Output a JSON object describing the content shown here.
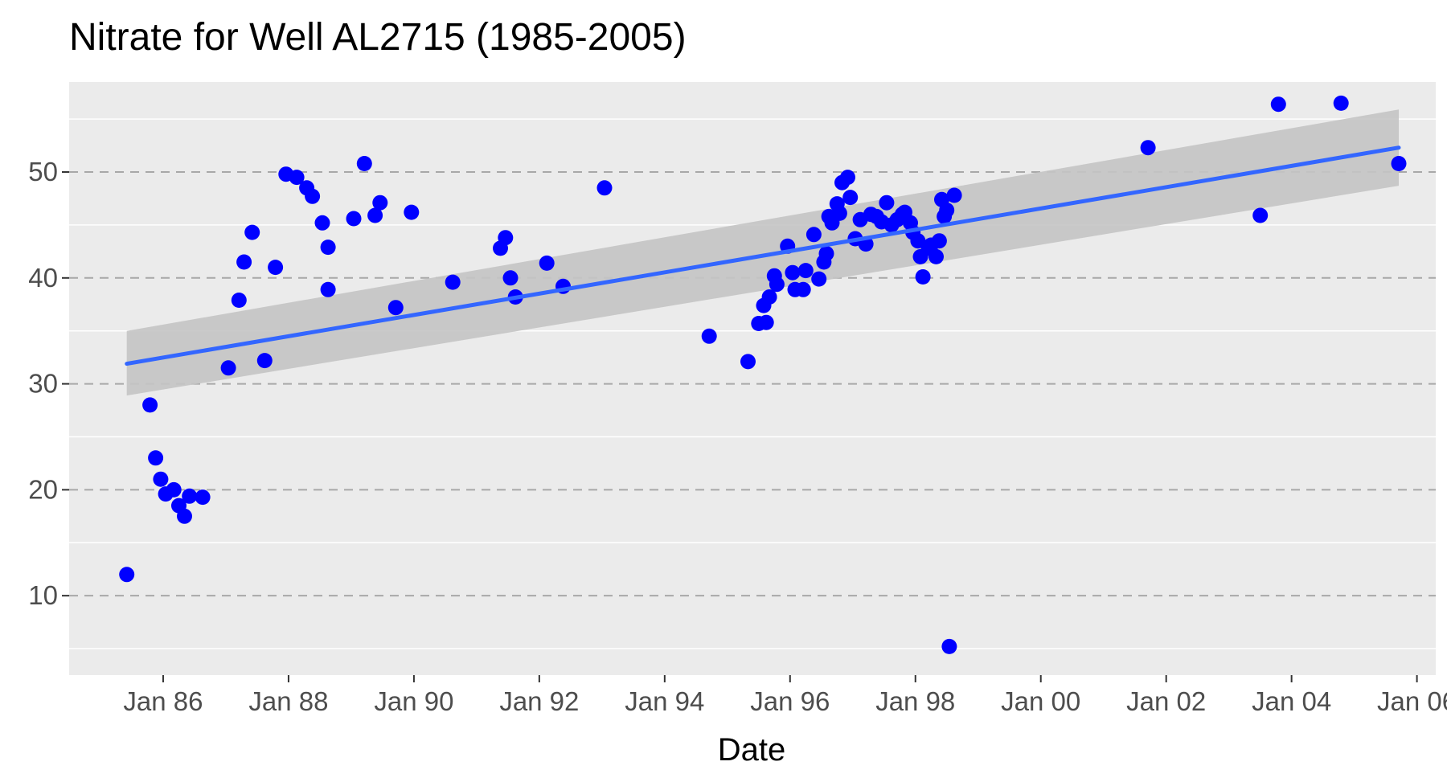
{
  "chart_data": {
    "type": "scatter",
    "title": "Nitrate for Well AL2715 (1985-2005)",
    "xlabel": "Date",
    "ylabel": "",
    "x_unit": "year",
    "xlim": [
      1984.5,
      2006.3
    ],
    "ylim": [
      2.5,
      58.5
    ],
    "grid": true,
    "legend": "none",
    "x_ticks": [
      {
        "value": 1986,
        "label": "Jan 86"
      },
      {
        "value": 1988,
        "label": "Jan 88"
      },
      {
        "value": 1990,
        "label": "Jan 90"
      },
      {
        "value": 1992,
        "label": "Jan 92"
      },
      {
        "value": 1994,
        "label": "Jan 94"
      },
      {
        "value": 1996,
        "label": "Jan 96"
      },
      {
        "value": 1998,
        "label": "Jan 98"
      },
      {
        "value": 2000,
        "label": "Jan 00"
      },
      {
        "value": 2002,
        "label": "Jan 02"
      },
      {
        "value": 2004,
        "label": "Jan 04"
      },
      {
        "value": 2006,
        "label": "Jan 06"
      }
    ],
    "y_ticks": [
      {
        "value": 10,
        "label": "10"
      },
      {
        "value": 20,
        "label": "20"
      },
      {
        "value": 30,
        "label": "30"
      },
      {
        "value": 40,
        "label": "40"
      },
      {
        "value": 50,
        "label": "50"
      }
    ],
    "point_color": "#0000ff",
    "trend_color": "#3366ff",
    "band_color": "#c4c4c4",
    "panel_background": "#ebebeb",
    "series": [
      {
        "name": "Nitrate",
        "points": [
          [
            1985.42,
            12.0
          ],
          [
            1985.79,
            28.0
          ],
          [
            1985.88,
            23.0
          ],
          [
            1985.96,
            21.0
          ],
          [
            1986.04,
            19.6
          ],
          [
            1986.17,
            20.0
          ],
          [
            1986.25,
            18.5
          ],
          [
            1986.34,
            17.5
          ],
          [
            1986.42,
            19.4
          ],
          [
            1986.63,
            19.3
          ],
          [
            1987.04,
            31.5
          ],
          [
            1987.21,
            37.9
          ],
          [
            1987.29,
            41.5
          ],
          [
            1987.42,
            44.3
          ],
          [
            1987.62,
            32.2
          ],
          [
            1987.79,
            41.0
          ],
          [
            1987.96,
            49.8
          ],
          [
            1988.13,
            49.5
          ],
          [
            1988.29,
            48.5
          ],
          [
            1988.38,
            47.7
          ],
          [
            1988.54,
            45.2
          ],
          [
            1988.63,
            42.9
          ],
          [
            1988.63,
            38.9
          ],
          [
            1989.04,
            45.6
          ],
          [
            1989.21,
            50.8
          ],
          [
            1989.38,
            45.9
          ],
          [
            1989.46,
            47.1
          ],
          [
            1989.71,
            37.2
          ],
          [
            1989.96,
            46.2
          ],
          [
            1990.62,
            39.6
          ],
          [
            1991.38,
            42.8
          ],
          [
            1991.46,
            43.8
          ],
          [
            1991.54,
            40.0
          ],
          [
            1991.62,
            38.2
          ],
          [
            1992.12,
            41.4
          ],
          [
            1992.38,
            39.2
          ],
          [
            1993.04,
            48.5
          ],
          [
            1994.71,
            34.5
          ],
          [
            1995.33,
            32.1
          ],
          [
            1995.5,
            35.7
          ],
          [
            1995.58,
            37.4
          ],
          [
            1995.62,
            35.8
          ],
          [
            1995.67,
            38.2
          ],
          [
            1995.75,
            40.2
          ],
          [
            1995.79,
            39.4
          ],
          [
            1995.96,
            43.0
          ],
          [
            1996.04,
            40.5
          ],
          [
            1996.08,
            38.9
          ],
          [
            1996.21,
            38.9
          ],
          [
            1996.25,
            40.7
          ],
          [
            1996.38,
            44.1
          ],
          [
            1996.46,
            39.9
          ],
          [
            1996.54,
            41.5
          ],
          [
            1996.58,
            42.3
          ],
          [
            1996.62,
            45.8
          ],
          [
            1996.67,
            45.2
          ],
          [
            1996.75,
            47.0
          ],
          [
            1996.79,
            46.1
          ],
          [
            1996.83,
            49.0
          ],
          [
            1996.92,
            49.5
          ],
          [
            1996.96,
            47.6
          ],
          [
            1997.04,
            43.7
          ],
          [
            1997.12,
            45.5
          ],
          [
            1997.21,
            43.2
          ],
          [
            1997.29,
            46.0
          ],
          [
            1997.38,
            45.8
          ],
          [
            1997.46,
            45.3
          ],
          [
            1997.54,
            47.1
          ],
          [
            1997.62,
            45.0
          ],
          [
            1997.71,
            45.5
          ],
          [
            1997.79,
            46.0
          ],
          [
            1997.83,
            46.2
          ],
          [
            1997.92,
            45.2
          ],
          [
            1997.96,
            44.3
          ],
          [
            1998.04,
            43.5
          ],
          [
            1998.08,
            42.0
          ],
          [
            1998.12,
            40.1
          ],
          [
            1998.21,
            42.8
          ],
          [
            1998.25,
            43.1
          ],
          [
            1998.33,
            42.0
          ],
          [
            1998.38,
            43.5
          ],
          [
            1998.42,
            47.4
          ],
          [
            1998.46,
            45.8
          ],
          [
            1998.5,
            46.4
          ],
          [
            1998.54,
            5.2
          ],
          [
            1998.62,
            47.8
          ],
          [
            2001.71,
            52.3
          ],
          [
            2003.5,
            45.9
          ],
          [
            2003.79,
            56.4
          ],
          [
            2004.79,
            56.5
          ],
          [
            2005.71,
            50.8
          ]
        ]
      }
    ],
    "trend_line": {
      "method": "linear fit",
      "x": [
        1985.42,
        2005.71
      ],
      "y": [
        31.9,
        52.3
      ],
      "ci_lower": [
        28.9,
        48.7
      ],
      "ci_upper": [
        35.0,
        55.9
      ]
    }
  }
}
